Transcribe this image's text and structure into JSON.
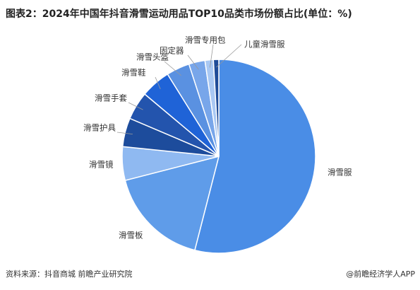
{
  "chart_data": {
    "type": "pie",
    "title": "图表2：2024年中国年抖音滑雪运动用品TOP10品类市场份额占比(单位：%)",
    "categories": [
      "滑雪服",
      "滑雪板",
      "滑雪镜",
      "滑雪护具",
      "滑雪手套",
      "滑雪鞋",
      "滑雪头盔",
      "固定器",
      "滑雪专用包",
      "儿童滑雪服"
    ],
    "values": [
      54,
      17,
      5.6,
      4.8,
      4.7,
      5,
      3.9,
      2.7,
      1.4,
      0.9
    ],
    "colors": [
      "#4a8de6",
      "#5f9ce9",
      "#8fb9f1",
      "#1d4c9c",
      "#2354ad",
      "#1f63d7",
      "#5a91e1",
      "#78a6ea",
      "#a9c8f3",
      "#1f4c98"
    ],
    "source": "资料来源：抖音商城 前瞻产业研究院",
    "brand": "@前瞻经济学人APP"
  }
}
